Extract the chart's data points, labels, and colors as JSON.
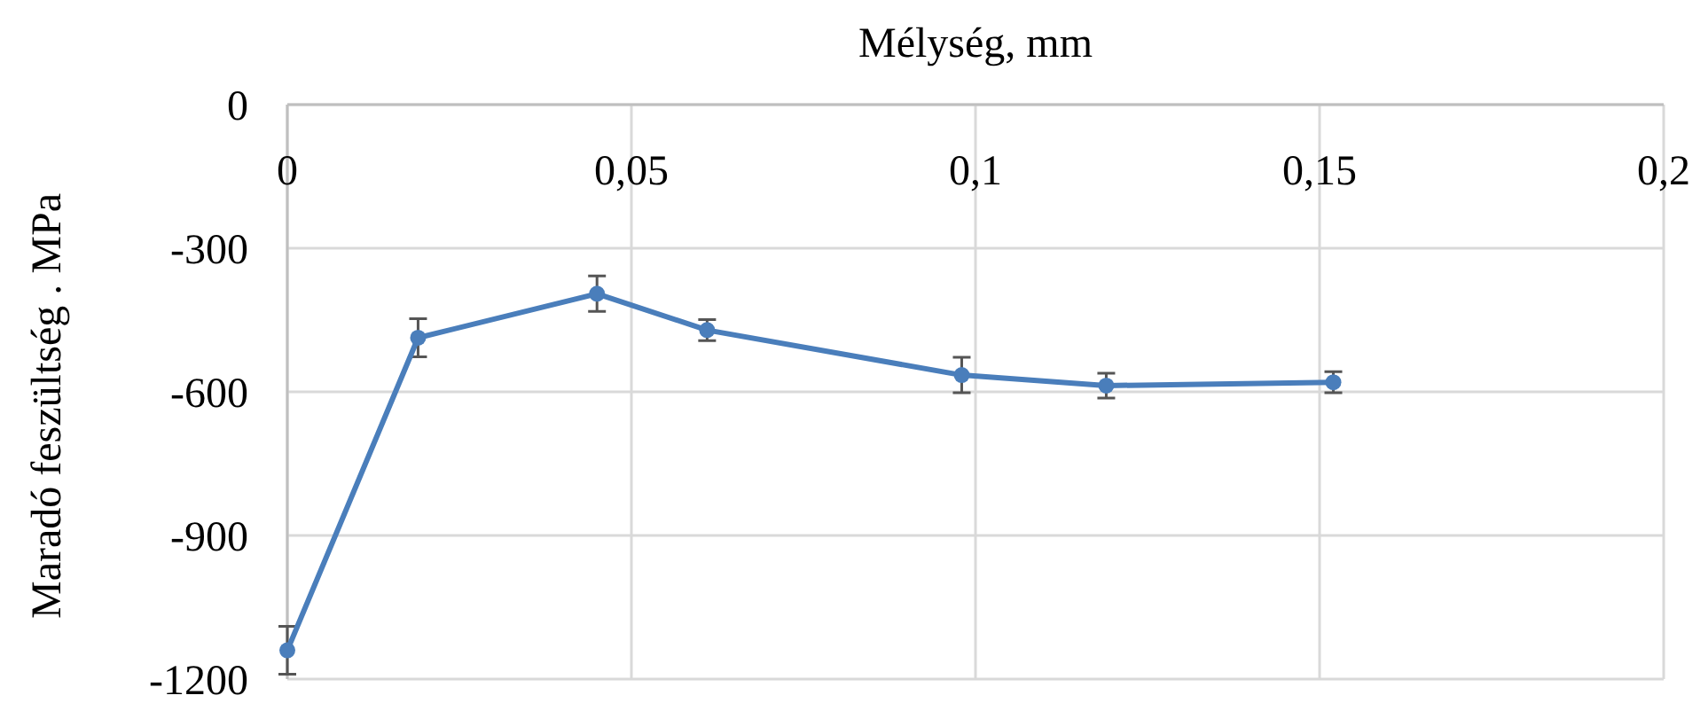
{
  "chart_data": {
    "type": "line",
    "xlabel": "Mélység, mm",
    "ylabel": "Maradó feszültség . MPa",
    "xlim": [
      0,
      0.2
    ],
    "xticks": [
      {
        "value": 0,
        "label": "0"
      },
      {
        "value": 0.05,
        "label": "0,05"
      },
      {
        "value": 0.1,
        "label": "0,1"
      },
      {
        "value": 0.15,
        "label": "0,15"
      },
      {
        "value": 0.2,
        "label": "0,2"
      }
    ],
    "ylim": [
      -1200,
      0
    ],
    "yticks": [
      -1200,
      -900,
      -600,
      -300,
      0
    ],
    "grid": true,
    "marker": "circle",
    "line_style": "solid",
    "x": [
      0,
      0.019,
      0.045,
      0.061,
      0.098,
      0.119,
      0.152
    ],
    "series": [
      {
        "color": "#4a7ebb",
        "values": [
          -1140,
          -487,
          -395,
          -471,
          -565,
          -587,
          -580
        ],
        "errors": [
          50,
          40,
          37,
          22,
          37,
          26,
          22
        ]
      }
    ]
  }
}
